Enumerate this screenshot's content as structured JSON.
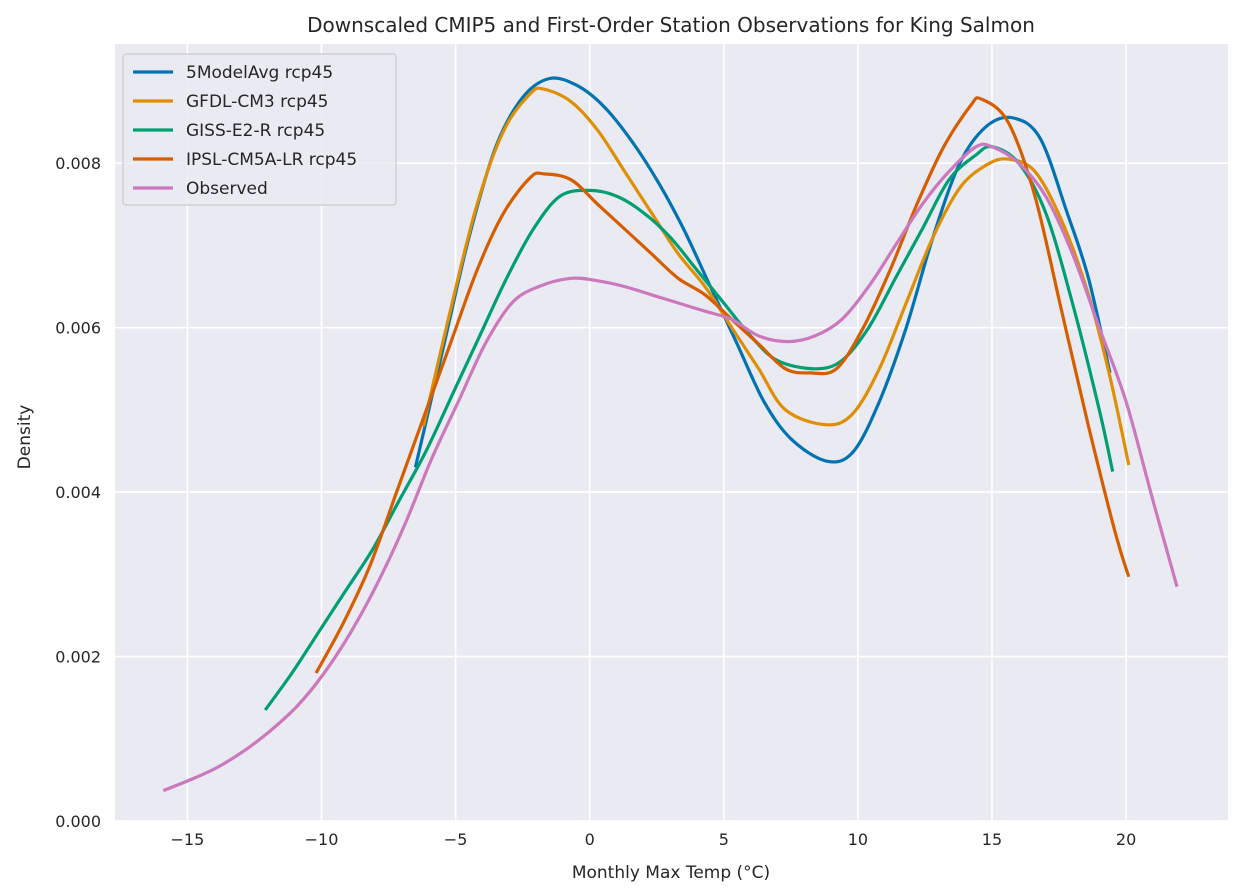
{
  "chart_data": {
    "type": "line",
    "title": "Downscaled CMIP5 and First-Order Station Observations for King Salmon",
    "xlabel": "Monthly Max Temp (°C)",
    "ylabel": "Density",
    "xlim": [
      -17.7,
      23.8
    ],
    "ylim": [
      0,
      0.00945
    ],
    "xticks": [
      -15,
      -10,
      -5,
      0,
      5,
      10,
      15,
      20
    ],
    "xtick_labels": [
      "−15",
      "−10",
      "−5",
      "0",
      "5",
      "10",
      "15",
      "20"
    ],
    "yticks": [
      0,
      0.002,
      0.004,
      0.006,
      0.008
    ],
    "ytick_labels": [
      "0.000",
      "0.002",
      "0.004",
      "0.006",
      "0.008"
    ],
    "grid": true,
    "legend_position": "top-left",
    "series": [
      {
        "name": "5ModelAvg rcp45",
        "color": "#0173b2",
        "points": [
          [
            -6.5,
            0.0043
          ],
          [
            -5.5,
            0.0057
          ],
          [
            -4.5,
            0.0071
          ],
          [
            -3.5,
            0.0082
          ],
          [
            -2.5,
            0.0088
          ],
          [
            -1.5,
            0.00903
          ],
          [
            -0.5,
            0.00895
          ],
          [
            0.5,
            0.0087
          ],
          [
            1.5,
            0.0083
          ],
          [
            2.5,
            0.0078
          ],
          [
            3.5,
            0.0072
          ],
          [
            4.5,
            0.0065
          ],
          [
            5.5,
            0.0058
          ],
          [
            6.5,
            0.0051
          ],
          [
            7.5,
            0.00465
          ],
          [
            8.8,
            0.00438
          ],
          [
            9.8,
            0.00448
          ],
          [
            10.8,
            0.0051
          ],
          [
            11.8,
            0.006
          ],
          [
            12.8,
            0.0071
          ],
          [
            13.8,
            0.008
          ],
          [
            14.8,
            0.00845
          ],
          [
            15.8,
            0.00855
          ],
          [
            16.8,
            0.0083
          ],
          [
            17.8,
            0.0074
          ],
          [
            18.6,
            0.0066
          ],
          [
            19.4,
            0.00545
          ]
        ]
      },
      {
        "name": "GFDL-CM3 rcp45",
        "color": "#de8f05",
        "points": [
          [
            -6.2,
            0.0048
          ],
          [
            -5.2,
            0.0062
          ],
          [
            -4.2,
            0.0075
          ],
          [
            -3.2,
            0.0084
          ],
          [
            -2.2,
            0.00885
          ],
          [
            -1.7,
            0.0089
          ],
          [
            -0.7,
            0.00875
          ],
          [
            0.3,
            0.0084
          ],
          [
            1.3,
            0.0079
          ],
          [
            2.3,
            0.0074
          ],
          [
            3.3,
            0.0069
          ],
          [
            4.3,
            0.0065
          ],
          [
            5.3,
            0.006
          ],
          [
            6.3,
            0.0055
          ],
          [
            7.3,
            0.005
          ],
          [
            8.8,
            0.00482
          ],
          [
            9.8,
            0.00495
          ],
          [
            10.8,
            0.0055
          ],
          [
            11.8,
            0.0063
          ],
          [
            12.8,
            0.0071
          ],
          [
            13.8,
            0.0077
          ],
          [
            14.8,
            0.00798
          ],
          [
            15.6,
            0.00805
          ],
          [
            16.6,
            0.0079
          ],
          [
            17.6,
            0.0073
          ],
          [
            18.6,
            0.0064
          ],
          [
            19.4,
            0.0054
          ],
          [
            20.1,
            0.00433
          ]
        ]
      },
      {
        "name": "GISS-E2-R rcp45",
        "color": "#029e73",
        "points": [
          [
            -12.1,
            0.00135
          ],
          [
            -11.1,
            0.0018
          ],
          [
            -10.1,
            0.0023
          ],
          [
            -9.1,
            0.0028
          ],
          [
            -8.1,
            0.0033
          ],
          [
            -7.1,
            0.0039
          ],
          [
            -6.1,
            0.0045
          ],
          [
            -5.1,
            0.0052
          ],
          [
            -4.1,
            0.0059
          ],
          [
            -3.1,
            0.0066
          ],
          [
            -2.1,
            0.0072
          ],
          [
            -1.1,
            0.0076
          ],
          [
            0.0,
            0.00767
          ],
          [
            1.0,
            0.0076
          ],
          [
            2.0,
            0.0074
          ],
          [
            3.0,
            0.0071
          ],
          [
            4.0,
            0.0067
          ],
          [
            5.0,
            0.0063
          ],
          [
            6.0,
            0.0059
          ],
          [
            7.0,
            0.0056
          ],
          [
            8.4,
            0.0055
          ],
          [
            9.4,
            0.0056
          ],
          [
            10.4,
            0.006
          ],
          [
            11.4,
            0.0066
          ],
          [
            12.4,
            0.0072
          ],
          [
            13.4,
            0.0078
          ],
          [
            14.4,
            0.0081
          ],
          [
            15.0,
            0.0082
          ],
          [
            16.0,
            0.008
          ],
          [
            17.0,
            0.0074
          ],
          [
            18.0,
            0.0063
          ],
          [
            19.0,
            0.005
          ],
          [
            19.5,
            0.00425
          ]
        ]
      },
      {
        "name": "IPSL-CM5A-LR rcp45",
        "color": "#d55e00",
        "points": [
          [
            -10.2,
            0.0018
          ],
          [
            -9.2,
            0.0024
          ],
          [
            -8.2,
            0.0031
          ],
          [
            -7.2,
            0.004
          ],
          [
            -6.2,
            0.0049
          ],
          [
            -5.2,
            0.0058
          ],
          [
            -4.2,
            0.0067
          ],
          [
            -3.2,
            0.0074
          ],
          [
            -2.2,
            0.00783
          ],
          [
            -1.7,
            0.00787
          ],
          [
            -0.7,
            0.0078
          ],
          [
            0.3,
            0.0075
          ],
          [
            1.3,
            0.0072
          ],
          [
            2.3,
            0.0069
          ],
          [
            3.3,
            0.0066
          ],
          [
            4.3,
            0.0064
          ],
          [
            5.3,
            0.0061
          ],
          [
            6.3,
            0.0058
          ],
          [
            7.3,
            0.0055
          ],
          [
            8.2,
            0.00545
          ],
          [
            9.2,
            0.0055
          ],
          [
            10.2,
            0.006
          ],
          [
            11.2,
            0.0067
          ],
          [
            12.2,
            0.0075
          ],
          [
            13.2,
            0.0082
          ],
          [
            14.2,
            0.0087
          ],
          [
            14.6,
            0.00878
          ],
          [
            15.6,
            0.0085
          ],
          [
            16.6,
            0.0076
          ],
          [
            17.6,
            0.0062
          ],
          [
            18.6,
            0.0048
          ],
          [
            19.6,
            0.0035
          ],
          [
            20.1,
            0.00297
          ]
        ]
      },
      {
        "name": "Observed",
        "color": "#cc78bc",
        "points": [
          [
            -15.9,
            0.00037
          ],
          [
            -14.9,
            0.0005
          ],
          [
            -13.9,
            0.00065
          ],
          [
            -12.9,
            0.00085
          ],
          [
            -11.9,
            0.0011
          ],
          [
            -10.9,
            0.0014
          ],
          [
            -9.9,
            0.0018
          ],
          [
            -8.9,
            0.0023
          ],
          [
            -7.9,
            0.0029
          ],
          [
            -6.9,
            0.0036
          ],
          [
            -5.9,
            0.0044
          ],
          [
            -4.9,
            0.0051
          ],
          [
            -3.9,
            0.0058
          ],
          [
            -2.9,
            0.0063
          ],
          [
            -1.9,
            0.0065
          ],
          [
            -0.7,
            0.0066
          ],
          [
            0.3,
            0.00657
          ],
          [
            1.3,
            0.0065
          ],
          [
            2.3,
            0.0064
          ],
          [
            3.3,
            0.0063
          ],
          [
            4.3,
            0.0062
          ],
          [
            5.3,
            0.0061
          ],
          [
            6.3,
            0.0059
          ],
          [
            7.4,
            0.00583
          ],
          [
            8.4,
            0.0059
          ],
          [
            9.4,
            0.0061
          ],
          [
            10.4,
            0.0065
          ],
          [
            11.4,
            0.007
          ],
          [
            12.4,
            0.0075
          ],
          [
            13.4,
            0.0079
          ],
          [
            14.4,
            0.0082
          ],
          [
            15.0,
            0.0082
          ],
          [
            16.0,
            0.008
          ],
          [
            17.0,
            0.0076
          ],
          [
            18.0,
            0.0069
          ],
          [
            19.0,
            0.006
          ],
          [
            20.0,
            0.0051
          ],
          [
            21.0,
            0.0039
          ],
          [
            21.9,
            0.00285
          ]
        ]
      }
    ]
  }
}
